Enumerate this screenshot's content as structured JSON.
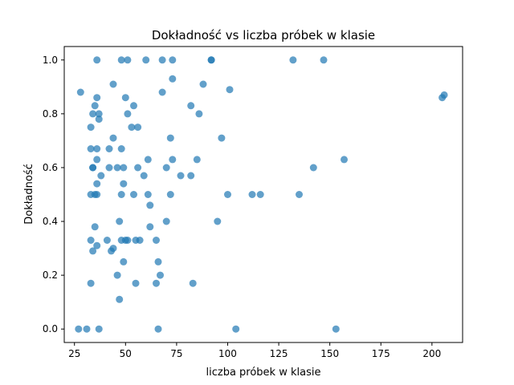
{
  "chart_data": {
    "type": "scatter",
    "title": "Dokładność vs liczba próbek w klasie",
    "xlabel": "liczba próbek w klasie",
    "ylabel": "Dokładność",
    "xlim": [
      20,
      215
    ],
    "ylim": [
      -0.05,
      1.05
    ],
    "xticks": [
      25,
      50,
      75,
      100,
      125,
      150,
      175,
      200
    ],
    "yticks": [
      0.0,
      0.2,
      0.4,
      0.6,
      0.8,
      1.0
    ],
    "ytick_labels": [
      "0.0",
      "0.2",
      "0.4",
      "0.6",
      "0.8",
      "1.0"
    ],
    "grid": false,
    "color": "#1f77b4",
    "points": [
      [
        27,
        0.0
      ],
      [
        31,
        0.0
      ],
      [
        37,
        0.0
      ],
      [
        66,
        0.0
      ],
      [
        104,
        0.0
      ],
      [
        153,
        0.0
      ],
      [
        47,
        0.11
      ],
      [
        33,
        0.17
      ],
      [
        55,
        0.17
      ],
      [
        65,
        0.17
      ],
      [
        83,
        0.17
      ],
      [
        46,
        0.2
      ],
      [
        67,
        0.2
      ],
      [
        49,
        0.25
      ],
      [
        66,
        0.25
      ],
      [
        34,
        0.29
      ],
      [
        43,
        0.29
      ],
      [
        44,
        0.3
      ],
      [
        36,
        0.31
      ],
      [
        33,
        0.33
      ],
      [
        41,
        0.33
      ],
      [
        48,
        0.33
      ],
      [
        50,
        0.33
      ],
      [
        51,
        0.33
      ],
      [
        55,
        0.33
      ],
      [
        57,
        0.33
      ],
      [
        65,
        0.33
      ],
      [
        35,
        0.38
      ],
      [
        62,
        0.38
      ],
      [
        47,
        0.4
      ],
      [
        70,
        0.4
      ],
      [
        95,
        0.4
      ],
      [
        62,
        0.46
      ],
      [
        33,
        0.5
      ],
      [
        35,
        0.5
      ],
      [
        36,
        0.5
      ],
      [
        48,
        0.5
      ],
      [
        54,
        0.5
      ],
      [
        61,
        0.5
      ],
      [
        72,
        0.5
      ],
      [
        100,
        0.5
      ],
      [
        112,
        0.5
      ],
      [
        116,
        0.5
      ],
      [
        135,
        0.5
      ],
      [
        49,
        0.54
      ],
      [
        36,
        0.54
      ],
      [
        38,
        0.57
      ],
      [
        59,
        0.57
      ],
      [
        77,
        0.57
      ],
      [
        82,
        0.57
      ],
      [
        34,
        0.6
      ],
      [
        34,
        0.6
      ],
      [
        42,
        0.6
      ],
      [
        46,
        0.6
      ],
      [
        49,
        0.6
      ],
      [
        56,
        0.6
      ],
      [
        70,
        0.6
      ],
      [
        142,
        0.6
      ],
      [
        36,
        0.63
      ],
      [
        61,
        0.63
      ],
      [
        73,
        0.63
      ],
      [
        85,
        0.63
      ],
      [
        157,
        0.63
      ],
      [
        33,
        0.67
      ],
      [
        36,
        0.67
      ],
      [
        42,
        0.67
      ],
      [
        48,
        0.67
      ],
      [
        44,
        0.71
      ],
      [
        72,
        0.71
      ],
      [
        97,
        0.71
      ],
      [
        53,
        0.75
      ],
      [
        56,
        0.75
      ],
      [
        33,
        0.75
      ],
      [
        37,
        0.78
      ],
      [
        34,
        0.8
      ],
      [
        37,
        0.8
      ],
      [
        51,
        0.8
      ],
      [
        86,
        0.8
      ],
      [
        35,
        0.83
      ],
      [
        54,
        0.83
      ],
      [
        82,
        0.83
      ],
      [
        36,
        0.86
      ],
      [
        50,
        0.86
      ],
      [
        205,
        0.86
      ],
      [
        206,
        0.87
      ],
      [
        28,
        0.88
      ],
      [
        68,
        0.88
      ],
      [
        101,
        0.89
      ],
      [
        44,
        0.91
      ],
      [
        88,
        0.91
      ],
      [
        73,
        0.93
      ],
      [
        36,
        1.0
      ],
      [
        48,
        1.0
      ],
      [
        51,
        1.0
      ],
      [
        60,
        1.0
      ],
      [
        68,
        1.0
      ],
      [
        73,
        1.0
      ],
      [
        92,
        1.0
      ],
      [
        92,
        1.0
      ],
      [
        132,
        1.0
      ],
      [
        147,
        1.0
      ]
    ]
  }
}
